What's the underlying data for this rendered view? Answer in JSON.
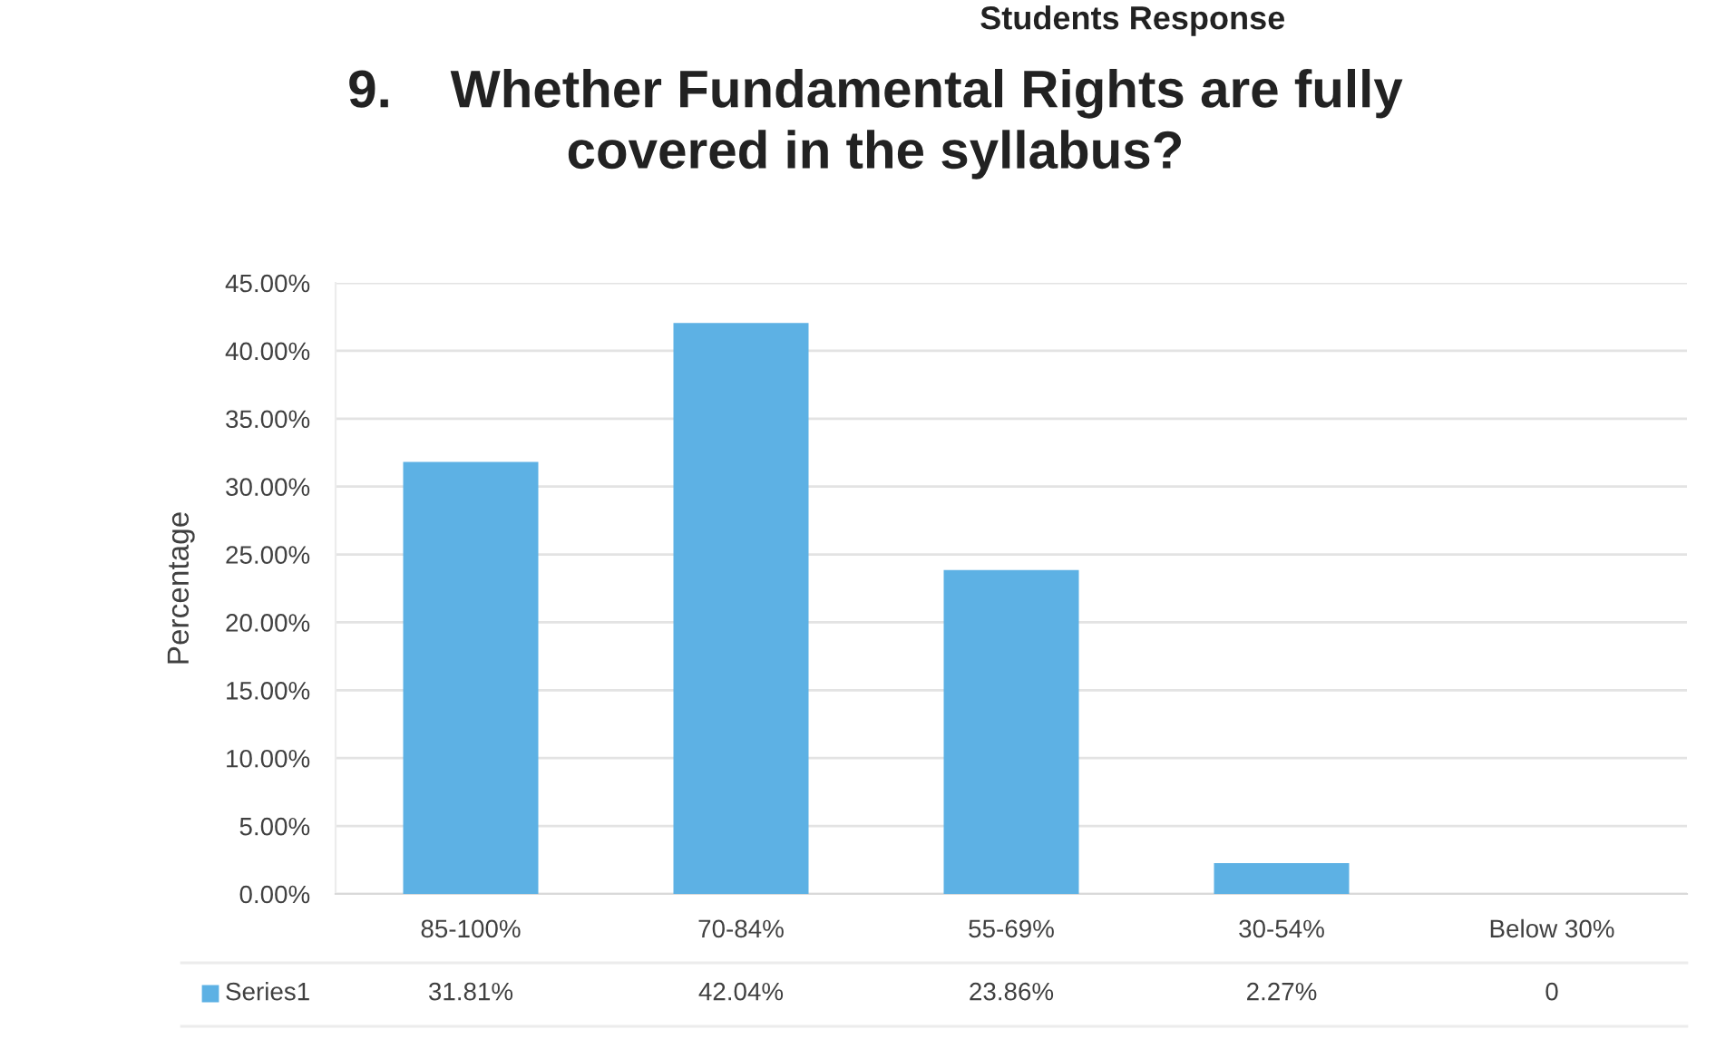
{
  "chart_data": {
    "type": "bar",
    "title": "9.    Whether Fundamental Rights are fully\ncovered in the syllabus?",
    "annotations": [
      "Students Response"
    ],
    "ylabel": "Percentage",
    "categories": [
      "85-100%",
      "70-84%",
      "55-69%",
      "30-54%",
      "Below 30%"
    ],
    "series": [
      {
        "name": "Series1",
        "color": "#5db1e4",
        "values": [
          31.81,
          42.04,
          23.86,
          2.27,
          0
        ],
        "value_labels": [
          "31.81%",
          "42.04%",
          "23.86%",
          "2.27%",
          "0"
        ]
      }
    ],
    "ylim": [
      0,
      45
    ],
    "yticks": [
      {
        "value": 0,
        "label": "0.00%"
      },
      {
        "value": 5,
        "label": "5.00%"
      },
      {
        "value": 10,
        "label": "10.00%"
      },
      {
        "value": 15,
        "label": "15.00%"
      },
      {
        "value": 20,
        "label": "20.00%"
      },
      {
        "value": 25,
        "label": "25.00%"
      },
      {
        "value": 30,
        "label": "30.00%"
      },
      {
        "value": 35,
        "label": "35.00%"
      },
      {
        "value": 40,
        "label": "40.00%"
      },
      {
        "value": 45,
        "label": "45.00%"
      }
    ],
    "grid": "y",
    "legend": "bottom left"
  }
}
